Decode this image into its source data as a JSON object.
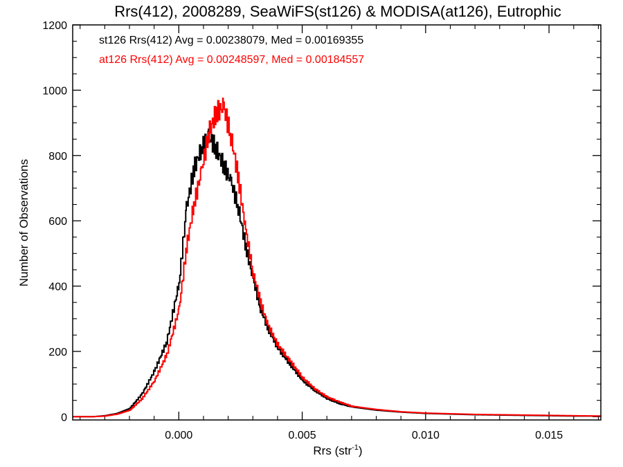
{
  "chart_data": {
    "type": "line",
    "title": "Rrs(412), 2008289, SeaWiFS(st126) & MODISA(at126), Eutrophic",
    "xlabel": "Rrs (str",
    "xlabel_sup": "-1",
    "xlabel_close": ")",
    "ylabel": "Number of Observations",
    "xlim": [
      -0.0043,
      0.0171
    ],
    "ylim": [
      -10,
      1200
    ],
    "xticks": [
      0.0,
      0.005,
      0.01,
      0.015
    ],
    "xtick_labels": [
      "0.000",
      "0.005",
      "0.010",
      "0.015"
    ],
    "yticks": [
      0,
      200,
      400,
      600,
      800,
      1000,
      1200
    ],
    "ytick_labels": [
      "0",
      "200",
      "400",
      "600",
      "800",
      "1000",
      "1200"
    ],
    "grid": false,
    "legend_placement": "top-left",
    "series": [
      {
        "name": "st126 Rrs(412) Avg = 0.00238079, Med = 0.00169355",
        "color": "#000000",
        "x": [
          -0.0043,
          -0.0035,
          -0.003,
          -0.0025,
          -0.002,
          -0.0015,
          -0.001,
          -0.0005,
          0.0,
          0.0003,
          0.0006,
          0.0009,
          0.0012,
          0.0015,
          0.0018,
          0.0021,
          0.0024,
          0.0027,
          0.003,
          0.0033,
          0.0036,
          0.004,
          0.0045,
          0.005,
          0.0055,
          0.006,
          0.0065,
          0.007,
          0.008,
          0.009,
          0.01,
          0.011,
          0.012,
          0.013,
          0.014,
          0.015,
          0.016,
          0.0171
        ],
        "y": [
          0,
          0,
          3,
          10,
          25,
          70,
          140,
          230,
          410,
          640,
          760,
          820,
          860,
          820,
          770,
          720,
          640,
          520,
          420,
          330,
          270,
          210,
          160,
          110,
          80,
          55,
          40,
          30,
          20,
          14,
          10,
          8,
          6,
          5,
          4,
          3,
          2,
          2
        ]
      },
      {
        "name": "at126 Rrs(412) Avg = 0.00248597, Med = 0.00184557",
        "color": "#ff0000",
        "x": [
          -0.0043,
          -0.0035,
          -0.003,
          -0.0025,
          -0.002,
          -0.0015,
          -0.001,
          -0.0005,
          0.0,
          0.0003,
          0.0006,
          0.0009,
          0.0012,
          0.0015,
          0.0018,
          0.0021,
          0.0024,
          0.0027,
          0.003,
          0.0033,
          0.0036,
          0.004,
          0.0045,
          0.005,
          0.0055,
          0.006,
          0.0065,
          0.007,
          0.008,
          0.009,
          0.01,
          0.011,
          0.012,
          0.013,
          0.014,
          0.015,
          0.016,
          0.0171
        ],
        "y": [
          0,
          0,
          2,
          8,
          20,
          55,
          110,
          190,
          330,
          520,
          650,
          750,
          870,
          930,
          950,
          860,
          730,
          570,
          440,
          350,
          280,
          220,
          170,
          120,
          85,
          60,
          45,
          32,
          22,
          15,
          11,
          9,
          7,
          6,
          5,
          4,
          3,
          2
        ]
      }
    ]
  }
}
